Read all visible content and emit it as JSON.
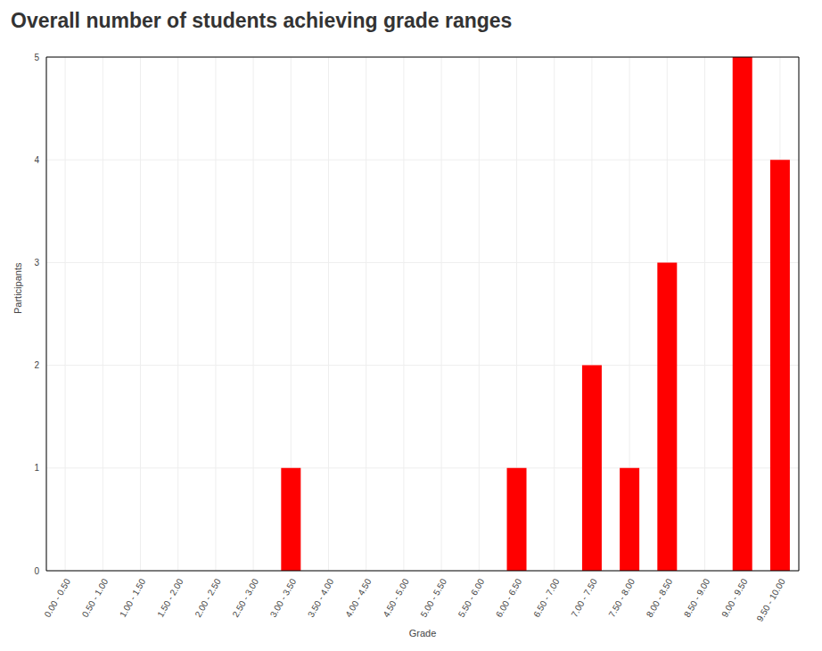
{
  "chart_data": {
    "type": "bar",
    "title": "Overall number of students achieving grade ranges",
    "xlabel": "Grade",
    "ylabel": "Participants",
    "categories": [
      "0.00 - 0.50",
      "0.50 - 1.00",
      "1.00 - 1.50",
      "1.50 - 2.00",
      "2.00 - 2.50",
      "2.50 - 3.00",
      "3.00 - 3.50",
      "3.50 - 4.00",
      "4.00 - 4.50",
      "4.50 - 5.00",
      "5.00 - 5.50",
      "5.50 - 6.00",
      "6.00 - 6.50",
      "6.50 - 7.00",
      "7.00 - 7.50",
      "7.50 - 8.00",
      "8.00 - 8.50",
      "8.50 - 9.00",
      "9.00 - 9.50",
      "9.50 - 10.00"
    ],
    "values": [
      0,
      0,
      0,
      0,
      0,
      0,
      1,
      0,
      0,
      0,
      0,
      0,
      1,
      0,
      2,
      1,
      3,
      0,
      5,
      4
    ],
    "color": "#ff0000",
    "ylim": [
      0,
      5
    ],
    "yticks": [
      0,
      1,
      2,
      3,
      4,
      5
    ],
    "grid": true
  }
}
